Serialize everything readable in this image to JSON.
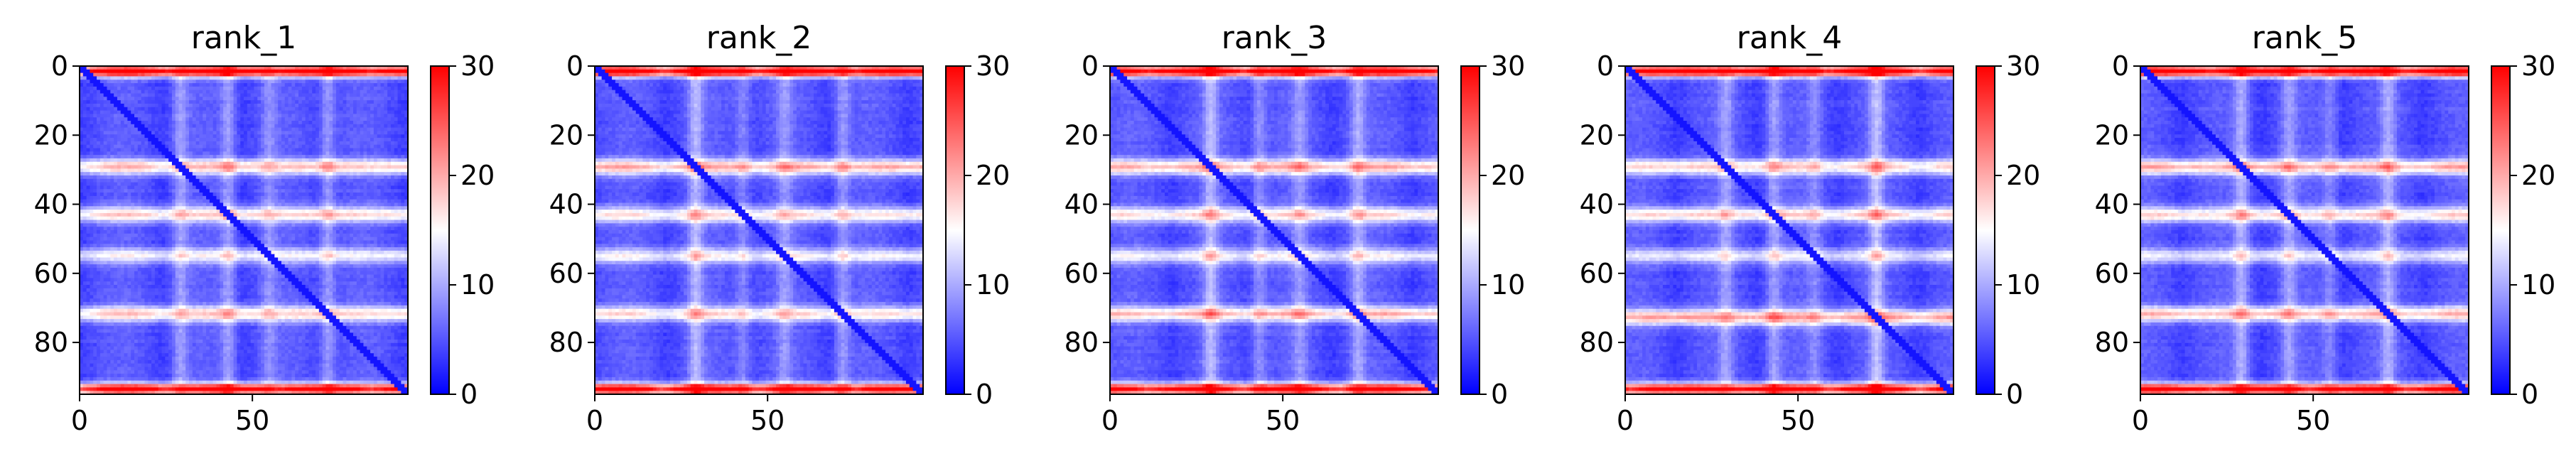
{
  "chart_data": {
    "type": "heatmap",
    "colormap": "bwr",
    "shared_scale": {
      "vmin": 0,
      "vmax": 30,
      "ticks": [
        0,
        10,
        20,
        30
      ],
      "tick_labels": [
        "0",
        "10",
        "20",
        "30"
      ]
    },
    "matrix_size": 96,
    "x_ticks": [
      0,
      50
    ],
    "x_tick_labels": [
      "0",
      "50"
    ],
    "y_ticks": [
      0,
      20,
      40,
      60,
      80
    ],
    "y_tick_labels": [
      "0",
      "20",
      "40",
      "60",
      "80"
    ],
    "xlim": [
      0,
      95
    ],
    "ylim": [
      95,
      0
    ],
    "panels": [
      {
        "title": "rank_1",
        "band_rows": [
          1,
          29,
          43,
          55,
          72,
          94
        ],
        "band_intensity": [
          1.0,
          0.85,
          0.75,
          0.6,
          0.8,
          0.95
        ]
      },
      {
        "title": "rank_2",
        "band_rows": [
          1,
          29,
          43,
          55,
          72,
          94
        ],
        "band_intensity": [
          1.0,
          0.9,
          0.7,
          0.6,
          0.75,
          0.95
        ]
      },
      {
        "title": "rank_3",
        "band_rows": [
          1,
          29,
          43,
          55,
          72,
          94
        ],
        "band_intensity": [
          1.0,
          0.9,
          0.75,
          0.6,
          0.85,
          0.95
        ]
      },
      {
        "title": "rank_4",
        "band_rows": [
          1,
          29,
          43,
          55,
          73,
          94
        ],
        "band_intensity": [
          1.0,
          0.8,
          0.75,
          0.55,
          0.95,
          0.95
        ]
      },
      {
        "title": "rank_5",
        "band_rows": [
          1,
          29,
          43,
          55,
          72,
          94
        ],
        "band_intensity": [
          1.0,
          0.9,
          0.75,
          0.55,
          0.85,
          0.95
        ]
      }
    ]
  }
}
